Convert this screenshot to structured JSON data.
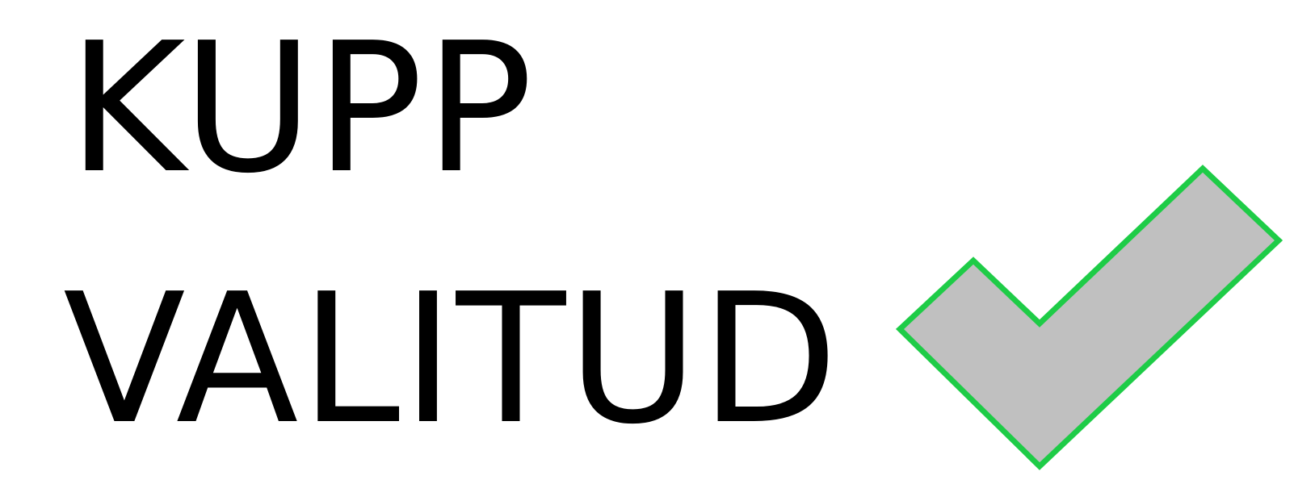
{
  "label": {
    "line1": "KUPP",
    "line2": "VALITUD"
  },
  "checkmark": {
    "icon": "checkmark-icon",
    "fill_color": "#c0c0c0",
    "stroke_color": "#1ecc47"
  }
}
